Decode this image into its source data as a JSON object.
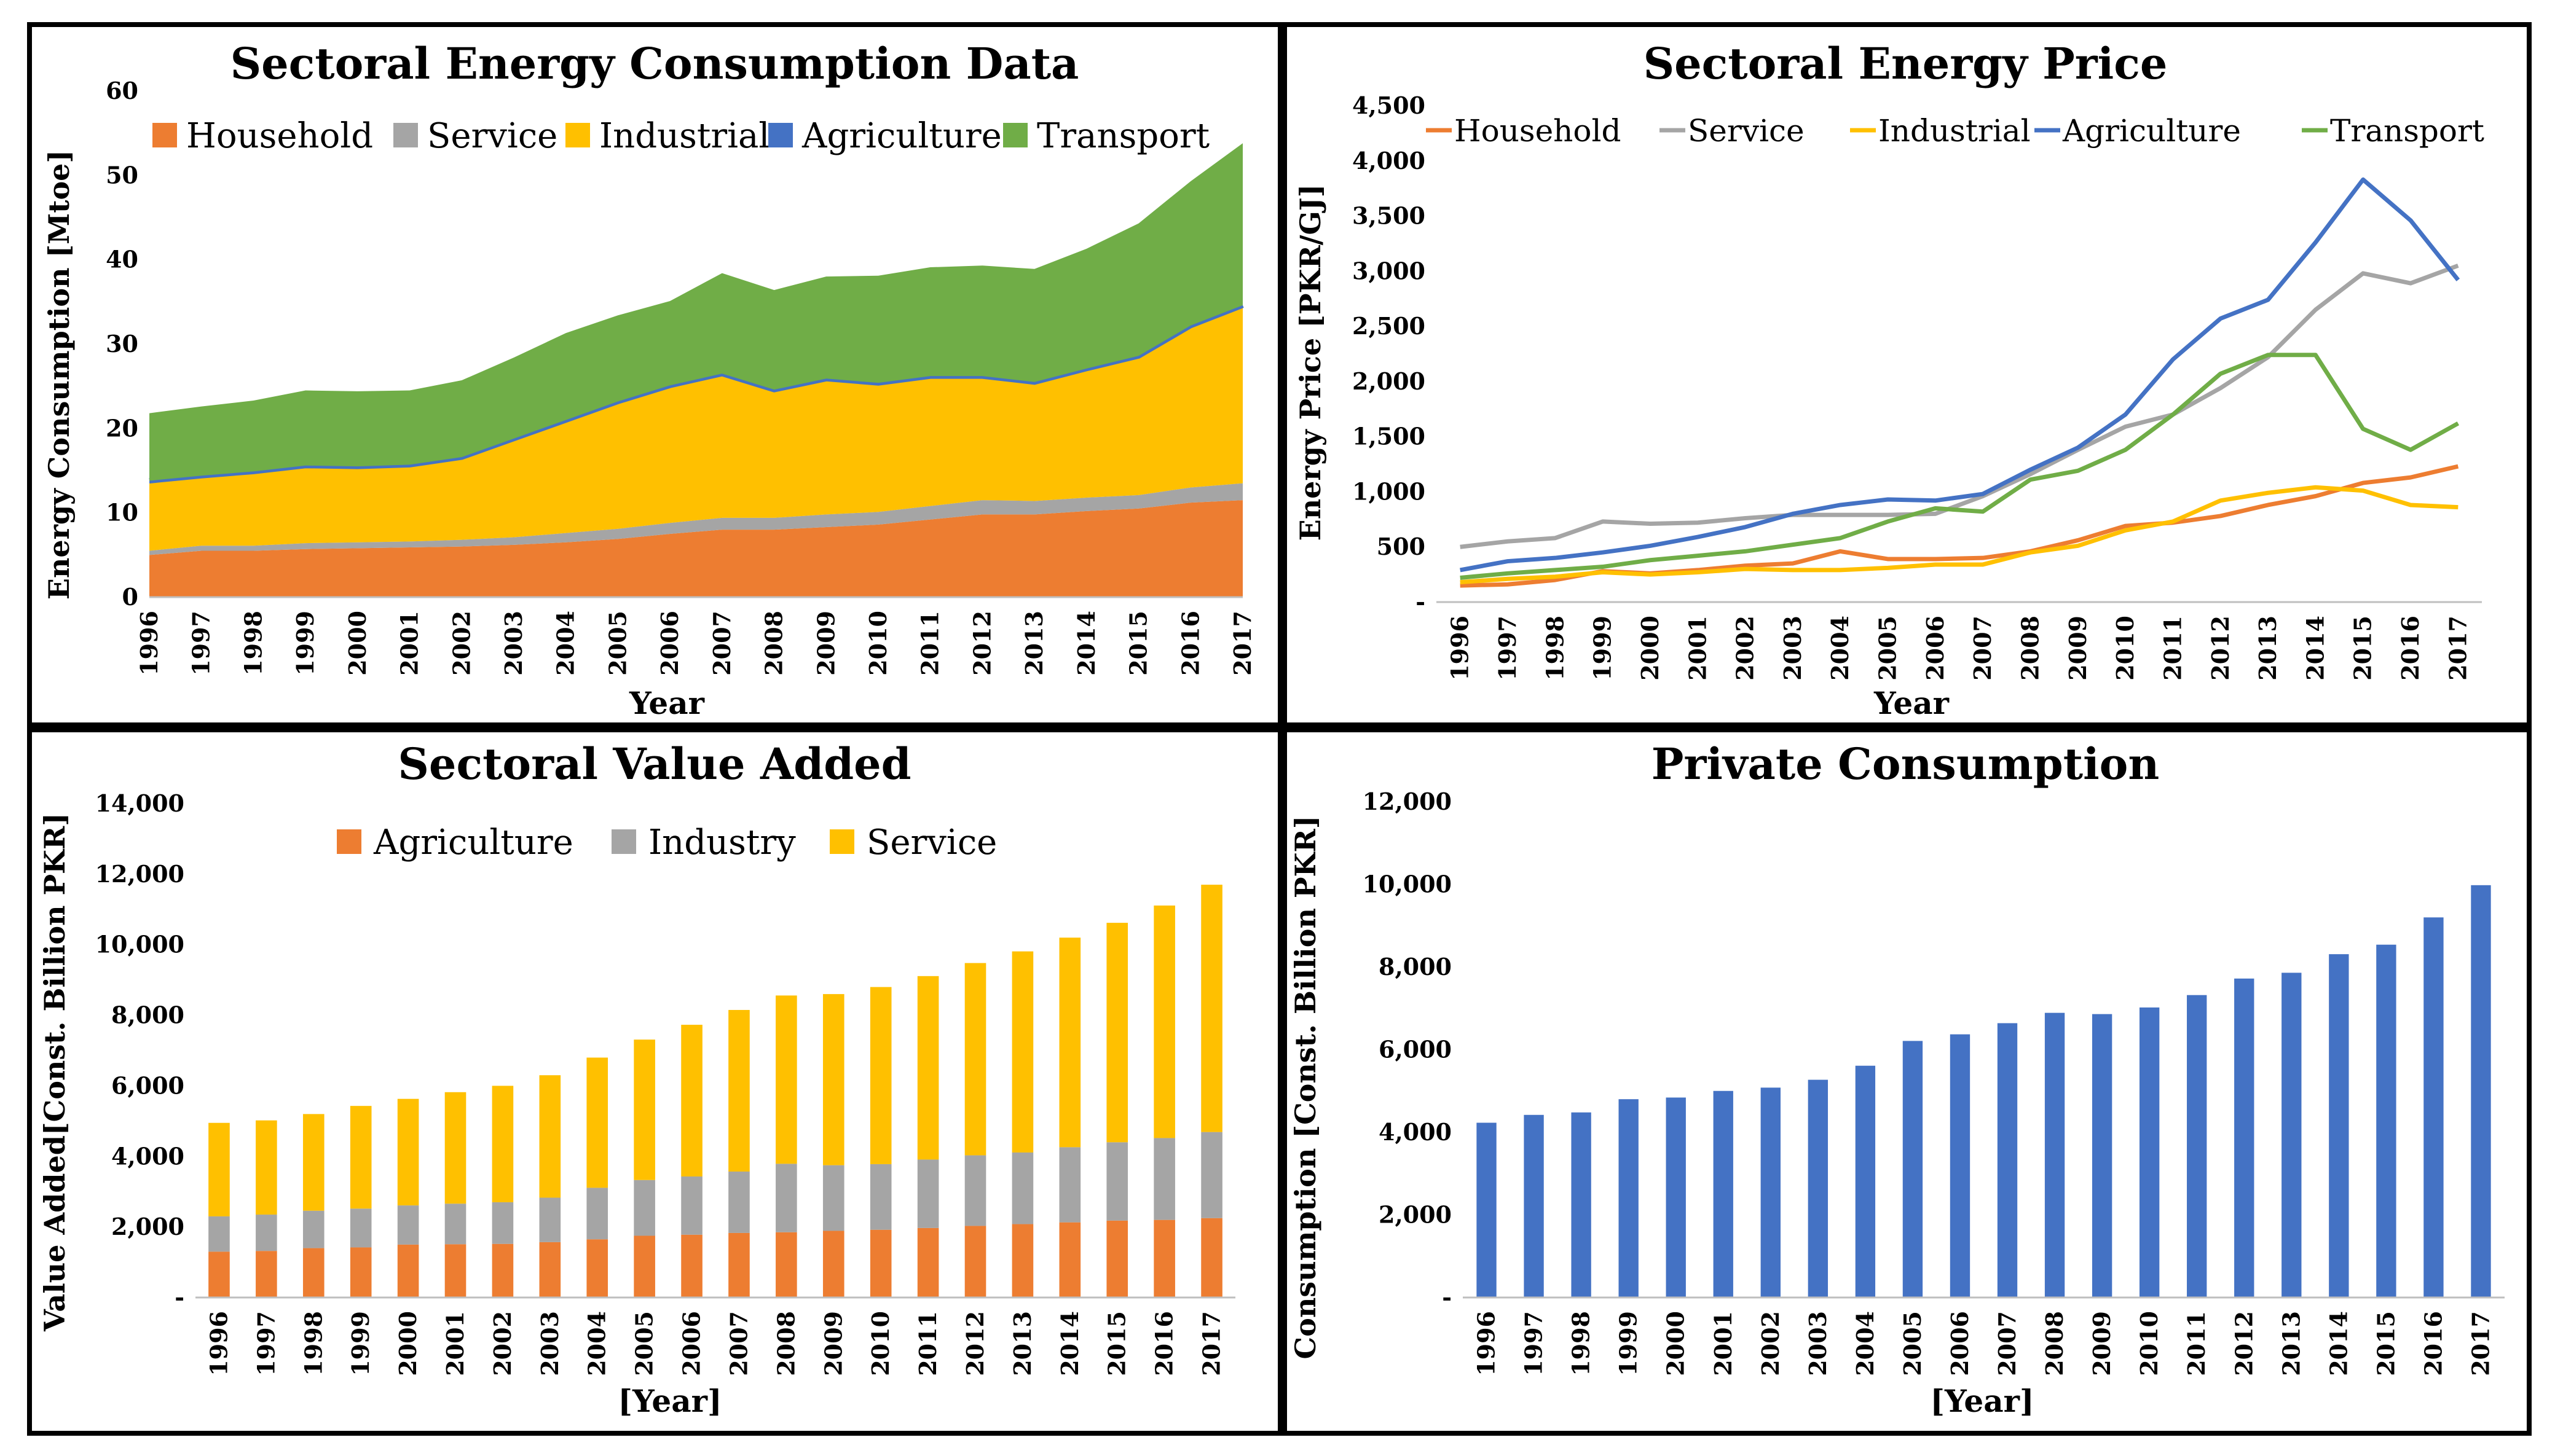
{
  "colors": {
    "household": "#ED7D31",
    "service": "#A5A5A5",
    "industrial": "#FFC000",
    "agriculture": "#4472C4",
    "transport": "#70AD47"
  },
  "chart_data": [
    {
      "id": "energy",
      "type": "area",
      "title": "Sectoral Energy Consumption Data",
      "xlabel": "Year",
      "ylabel": "Energy Consumption [Mtoe]",
      "ylim": [
        0,
        60
      ],
      "yticks": [
        "0",
        "10",
        "20",
        "30",
        "40",
        "50",
        "60"
      ],
      "stacked": true,
      "legend_position": "top",
      "categories": [
        "1996",
        "1997",
        "1998",
        "1999",
        "2000",
        "2001",
        "2002",
        "2003",
        "2004",
        "2005",
        "2006",
        "2007",
        "2008",
        "2009",
        "2010",
        "2011",
        "2012",
        "2013",
        "2014",
        "2015",
        "2016",
        "2017"
      ],
      "series": [
        {
          "name": "Household",
          "key": "household",
          "values": [
            5.0,
            5.5,
            5.5,
            5.7,
            5.8,
            5.9,
            6.0,
            6.2,
            6.5,
            6.9,
            7.5,
            8.0,
            8.0,
            8.3,
            8.6,
            9.2,
            9.8,
            9.8,
            10.2,
            10.5,
            11.2,
            11.5
          ]
        },
        {
          "name": "Service",
          "key": "service",
          "values": [
            0.5,
            0.6,
            0.6,
            0.7,
            0.7,
            0.7,
            0.8,
            0.9,
            1.1,
            1.2,
            1.3,
            1.4,
            1.4,
            1.5,
            1.5,
            1.6,
            1.7,
            1.6,
            1.6,
            1.6,
            1.8,
            2.0
          ]
        },
        {
          "name": "Industrial",
          "key": "industrial",
          "values": [
            8.0,
            8.0,
            8.5,
            8.9,
            8.7,
            8.8,
            9.5,
            11.4,
            13.1,
            14.8,
            16.0,
            16.8,
            14.9,
            15.8,
            15.0,
            15.1,
            14.4,
            13.8,
            15.0,
            16.2,
            18.9,
            20.8
          ]
        },
        {
          "name": "Agriculture",
          "key": "agriculture",
          "values": [
            0.3,
            0.3,
            0.3,
            0.3,
            0.3,
            0.3,
            0.3,
            0.3,
            0.3,
            0.3,
            0.3,
            0.3,
            0.3,
            0.3,
            0.3,
            0.3,
            0.3,
            0.3,
            0.3,
            0.3,
            0.3,
            0.3
          ]
        },
        {
          "name": "Transport",
          "key": "transport",
          "values": [
            8.0,
            8.2,
            8.4,
            8.9,
            8.9,
            8.8,
            9.1,
            9.6,
            10.3,
            10.2,
            10.0,
            11.9,
            11.8,
            12.1,
            12.7,
            12.9,
            13.1,
            13.4,
            14.2,
            15.7,
            17.1,
            19.2
          ]
        }
      ]
    },
    {
      "id": "price",
      "type": "line",
      "title": "Sectoral Energy Price",
      "xlabel": "Year",
      "ylabel": "Energy Price [PKR/GJ]",
      "ylim": [
        0,
        4500
      ],
      "yticks": [
        "-",
        "500",
        "1,000",
        "1,500",
        "2,000",
        "2,500",
        "3,000",
        "3,500",
        "4,000",
        "4,500"
      ],
      "legend_position": "top",
      "categories": [
        "1996",
        "1997",
        "1998",
        "1999",
        "2000",
        "2001",
        "2002",
        "2003",
        "2004",
        "2005",
        "2006",
        "2007",
        "2008",
        "2009",
        "2010",
        "2011",
        "2012",
        "2013",
        "2014",
        "2015",
        "2016",
        "2017"
      ],
      "series": [
        {
          "name": "Household",
          "key": "household",
          "values": [
            150,
            160,
            200,
            280,
            260,
            290,
            330,
            350,
            460,
            390,
            390,
            400,
            460,
            560,
            690,
            720,
            780,
            880,
            960,
            1080,
            1130,
            1230
          ]
        },
        {
          "name": "Service",
          "key": "service",
          "values": [
            500,
            550,
            580,
            730,
            710,
            720,
            760,
            790,
            790,
            790,
            800,
            960,
            1160,
            1380,
            1590,
            1700,
            1940,
            2220,
            2650,
            2980,
            2890,
            3050
          ]
        },
        {
          "name": "Industrial",
          "key": "industrial",
          "values": [
            180,
            210,
            230,
            270,
            250,
            270,
            300,
            290,
            290,
            310,
            340,
            340,
            450,
            510,
            650,
            730,
            920,
            990,
            1040,
            1010,
            880,
            860
          ]
        },
        {
          "name": "Agriculture",
          "key": "agriculture",
          "values": [
            290,
            370,
            400,
            450,
            510,
            590,
            680,
            800,
            880,
            930,
            920,
            980,
            1200,
            1400,
            1700,
            2200,
            2570,
            2740,
            3260,
            3830,
            3460,
            2920
          ]
        },
        {
          "name": "Transport",
          "key": "transport",
          "values": [
            220,
            260,
            290,
            320,
            380,
            420,
            460,
            520,
            580,
            730,
            850,
            820,
            1110,
            1190,
            1380,
            1700,
            2070,
            2240,
            2240,
            1570,
            1380,
            1620
          ]
        }
      ]
    },
    {
      "id": "value_added",
      "type": "bar",
      "stacked": true,
      "title": "Sectoral Value Added",
      "xlabel": "[Year]",
      "ylabel": "Value Added[Const. Billion PKR]",
      "ylim": [
        0,
        14000
      ],
      "yticks": [
        "-",
        "2,000",
        "4,000",
        "6,000",
        "8,000",
        "10,000",
        "12,000",
        "14,000"
      ],
      "legend_position": "top",
      "categories": [
        "1996",
        "1997",
        "1998",
        "1999",
        "2000",
        "2001",
        "2002",
        "2003",
        "2004",
        "2005",
        "2006",
        "2007",
        "2008",
        "2009",
        "2010",
        "2011",
        "2012",
        "2013",
        "2014",
        "2015",
        "2016",
        "2017"
      ],
      "series": [
        {
          "name": "Agriculture",
          "key": "household",
          "values": [
            1300,
            1320,
            1400,
            1420,
            1500,
            1510,
            1520,
            1570,
            1650,
            1750,
            1780,
            1830,
            1850,
            1890,
            1920,
            1970,
            2030,
            2080,
            2130,
            2180,
            2200,
            2250
          ]
        },
        {
          "name": "Industry",
          "key": "service",
          "values": [
            1000,
            1030,
            1060,
            1100,
            1110,
            1150,
            1180,
            1260,
            1460,
            1580,
            1650,
            1740,
            1940,
            1860,
            1860,
            1940,
            2000,
            2030,
            2130,
            2220,
            2320,
            2440
          ]
        },
        {
          "name": "Service",
          "key": "industrial",
          "values": [
            2650,
            2670,
            2740,
            2910,
            3020,
            3160,
            3300,
            3470,
            3690,
            3980,
            4300,
            4580,
            4770,
            4850,
            5020,
            5200,
            5450,
            5700,
            5940,
            6220,
            6590,
            7010
          ]
        }
      ]
    },
    {
      "id": "private",
      "type": "bar",
      "title": "Private Consumption",
      "xlabel": "[Year]",
      "ylabel": "Consumption [Const. Billion PKR]",
      "ylim": [
        0,
        12000
      ],
      "yticks": [
        "-",
        "2,000",
        "4,000",
        "6,000",
        "8,000",
        "10,000",
        "12,000"
      ],
      "categories": [
        "1996",
        "1997",
        "1998",
        "1999",
        "2000",
        "2001",
        "2002",
        "2003",
        "2004",
        "2005",
        "2006",
        "2007",
        "2008",
        "2009",
        "2010",
        "2011",
        "2012",
        "2013",
        "2014",
        "2015",
        "2016",
        "2017"
      ],
      "series": [
        {
          "name": "Private Consumption",
          "key": "agriculture",
          "values": [
            4230,
            4420,
            4480,
            4800,
            4840,
            5000,
            5080,
            5270,
            5610,
            6210,
            6370,
            6640,
            6890,
            6860,
            7020,
            7320,
            7720,
            7860,
            8310,
            8540,
            9200,
            9980
          ]
        }
      ]
    }
  ]
}
